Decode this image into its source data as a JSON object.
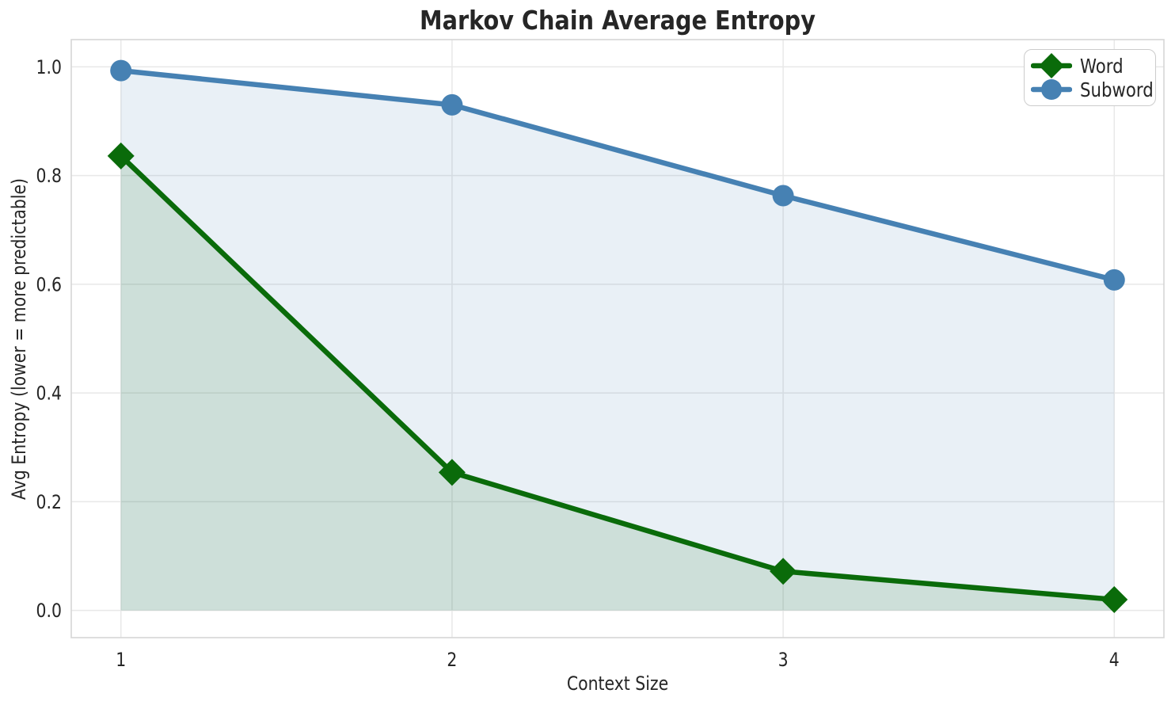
{
  "chart_data": {
    "type": "line",
    "title": "Markov Chain Average Entropy",
    "xlabel": "Context Size",
    "ylabel": "Avg Entropy (lower = more predictable)",
    "x": [
      1,
      2,
      3,
      4
    ],
    "series": [
      {
        "name": "Word",
        "values": [
          0.836,
          0.254,
          0.072,
          0.02
        ],
        "color": "#0a6b0a",
        "marker": "diamond",
        "fill": true
      },
      {
        "name": "Subword",
        "values": [
          0.993,
          0.93,
          0.763,
          0.608
        ],
        "color": "#4681b3",
        "marker": "circle",
        "fill": true
      }
    ],
    "fill_baseline": 0,
    "fill_alpha": 0.12,
    "xticks": {
      "values": [
        1,
        2,
        3,
        4
      ],
      "labels": [
        "1",
        "2",
        "3",
        "4"
      ]
    },
    "yticks": {
      "values": [
        0,
        0.2,
        0.4,
        0.6,
        0.8,
        1.0
      ],
      "labels": [
        "0.0",
        "0.2",
        "0.4",
        "0.6",
        "0.8",
        "1.0"
      ]
    },
    "xlim": [
      0.85,
      4.15
    ],
    "ylim": [
      -0.05,
      1.05
    ],
    "grid": true,
    "legend_position": "upper right"
  },
  "style": {
    "background": "#ffffff",
    "grid_color": "#e8e8e8",
    "spine_color": "#d6d6d6",
    "text_color": "#262626",
    "legend_border_color": "#cccccc"
  }
}
